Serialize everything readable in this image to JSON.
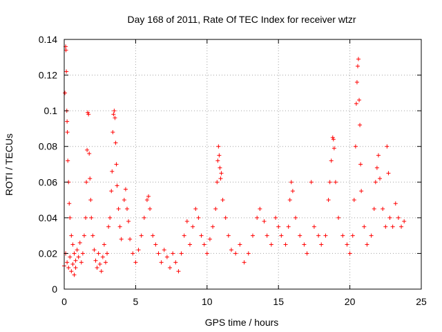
{
  "chart_data": {
    "type": "scatter",
    "title": "Day 168 of 2011, Rate Of TEC Index for receiver wtzr",
    "xlabel": "GPS time / hours",
    "ylabel": "ROTI / TECUs",
    "xlim": [
      0,
      25
    ],
    "ylim": [
      0,
      0.14
    ],
    "xticks": [
      0,
      5,
      10,
      15,
      20,
      25
    ],
    "xtick_labels": [
      "0",
      "5",
      "10",
      "15",
      "20",
      "25"
    ],
    "yticks": [
      0,
      0.02,
      0.04,
      0.06,
      0.08,
      0.1,
      0.12,
      0.14
    ],
    "ytick_labels": [
      "0",
      "0.02",
      "0.04",
      "0.06",
      "0.08",
      "0.1",
      "0.12",
      "0.14"
    ],
    "grid": true,
    "marker": "+",
    "colors": {
      "points": "#ff0000",
      "grid": "#a0a0a0",
      "axes": "#000000"
    },
    "series": [
      {
        "name": "ROTI",
        "points": [
          [
            0.0,
            0.013
          ],
          [
            0.05,
            0.11
          ],
          [
            0.1,
            0.136
          ],
          [
            0.12,
            0.134
          ],
          [
            0.15,
            0.122
          ],
          [
            0.18,
            0.1
          ],
          [
            0.2,
            0.094
          ],
          [
            0.22,
            0.088
          ],
          [
            0.25,
            0.072
          ],
          [
            0.3,
            0.06
          ],
          [
            0.35,
            0.048
          ],
          [
            0.4,
            0.04
          ],
          [
            0.5,
            0.03
          ],
          [
            0.6,
            0.025
          ],
          [
            0.7,
            0.02
          ],
          [
            0.8,
            0.016
          ],
          [
            0.9,
            0.022
          ],
          [
            1.0,
            0.018
          ],
          [
            0.1,
            0.02
          ],
          [
            0.2,
            0.015
          ],
          [
            0.3,
            0.012
          ],
          [
            0.4,
            0.018
          ],
          [
            0.5,
            0.01
          ],
          [
            0.6,
            0.014
          ],
          [
            0.7,
            0.008
          ],
          [
            0.8,
            0.012
          ],
          [
            1.1,
            0.026
          ],
          [
            1.2,
            0.015
          ],
          [
            1.3,
            0.02
          ],
          [
            1.4,
            0.03
          ],
          [
            1.5,
            0.04
          ],
          [
            1.55,
            0.06
          ],
          [
            1.6,
            0.078
          ],
          [
            1.65,
            0.099
          ],
          [
            1.7,
            0.098
          ],
          [
            1.75,
            0.076
          ],
          [
            1.8,
            0.062
          ],
          [
            1.85,
            0.05
          ],
          [
            1.9,
            0.04
          ],
          [
            2.0,
            0.03
          ],
          [
            2.1,
            0.022
          ],
          [
            2.2,
            0.016
          ],
          [
            2.3,
            0.012
          ],
          [
            2.4,
            0.02
          ],
          [
            2.5,
            0.014
          ],
          [
            2.6,
            0.01
          ],
          [
            2.7,
            0.018
          ],
          [
            2.8,
            0.025
          ],
          [
            2.9,
            0.015
          ],
          [
            3.0,
            0.02
          ],
          [
            3.1,
            0.035
          ],
          [
            3.2,
            0.04
          ],
          [
            3.3,
            0.055
          ],
          [
            3.35,
            0.066
          ],
          [
            3.4,
            0.088
          ],
          [
            3.45,
            0.098
          ],
          [
            3.5,
            0.1
          ],
          [
            3.55,
            0.096
          ],
          [
            3.6,
            0.082
          ],
          [
            3.65,
            0.07
          ],
          [
            3.7,
            0.058
          ],
          [
            3.8,
            0.045
          ],
          [
            3.9,
            0.035
          ],
          [
            4.0,
            0.028
          ],
          [
            4.2,
            0.05
          ],
          [
            4.3,
            0.056
          ],
          [
            4.4,
            0.045
          ],
          [
            4.5,
            0.038
          ],
          [
            4.6,
            0.028
          ],
          [
            4.8,
            0.02
          ],
          [
            5.0,
            0.015
          ],
          [
            5.2,
            0.022
          ],
          [
            5.4,
            0.03
          ],
          [
            5.6,
            0.04
          ],
          [
            5.8,
            0.05
          ],
          [
            5.9,
            0.052
          ],
          [
            6.0,
            0.045
          ],
          [
            6.2,
            0.03
          ],
          [
            6.4,
            0.025
          ],
          [
            6.6,
            0.02
          ],
          [
            6.8,
            0.015
          ],
          [
            7.0,
            0.022
          ],
          [
            7.2,
            0.018
          ],
          [
            7.4,
            0.012
          ],
          [
            7.6,
            0.02
          ],
          [
            7.8,
            0.015
          ],
          [
            8.0,
            0.01
          ],
          [
            8.2,
            0.02
          ],
          [
            8.4,
            0.03
          ],
          [
            8.6,
            0.038
          ],
          [
            8.8,
            0.025
          ],
          [
            9.0,
            0.035
          ],
          [
            9.2,
            0.045
          ],
          [
            9.4,
            0.04
          ],
          [
            9.6,
            0.03
          ],
          [
            9.8,
            0.025
          ],
          [
            10.0,
            0.02
          ],
          [
            10.2,
            0.028
          ],
          [
            10.4,
            0.035
          ],
          [
            10.6,
            0.045
          ],
          [
            10.7,
            0.06
          ],
          [
            10.75,
            0.072
          ],
          [
            10.8,
            0.08
          ],
          [
            10.85,
            0.075
          ],
          [
            10.9,
            0.068
          ],
          [
            10.95,
            0.062
          ],
          [
            11.0,
            0.065
          ],
          [
            11.1,
            0.05
          ],
          [
            11.3,
            0.04
          ],
          [
            11.5,
            0.03
          ],
          [
            11.7,
            0.022
          ],
          [
            12.0,
            0.02
          ],
          [
            12.3,
            0.025
          ],
          [
            12.6,
            0.015
          ],
          [
            12.9,
            0.02
          ],
          [
            13.2,
            0.03
          ],
          [
            13.5,
            0.04
          ],
          [
            13.7,
            0.045
          ],
          [
            14.0,
            0.038
          ],
          [
            14.2,
            0.03
          ],
          [
            14.5,
            0.025
          ],
          [
            14.8,
            0.04
          ],
          [
            15.0,
            0.035
          ],
          [
            15.2,
            0.03
          ],
          [
            15.5,
            0.025
          ],
          [
            15.7,
            0.035
          ],
          [
            15.8,
            0.05
          ],
          [
            15.9,
            0.06
          ],
          [
            16.0,
            0.055
          ],
          [
            16.2,
            0.04
          ],
          [
            16.5,
            0.03
          ],
          [
            16.8,
            0.025
          ],
          [
            17.0,
            0.02
          ],
          [
            17.3,
            0.06
          ],
          [
            17.5,
            0.035
          ],
          [
            17.8,
            0.03
          ],
          [
            18.0,
            0.025
          ],
          [
            18.3,
            0.03
          ],
          [
            18.5,
            0.05
          ],
          [
            18.6,
            0.06
          ],
          [
            18.7,
            0.072
          ],
          [
            18.8,
            0.085
          ],
          [
            18.85,
            0.084
          ],
          [
            18.9,
            0.079
          ],
          [
            19.0,
            0.06
          ],
          [
            19.2,
            0.04
          ],
          [
            19.5,
            0.03
          ],
          [
            19.8,
            0.025
          ],
          [
            20.0,
            0.02
          ],
          [
            20.2,
            0.03
          ],
          [
            20.3,
            0.05
          ],
          [
            20.4,
            0.08
          ],
          [
            20.45,
            0.104
          ],
          [
            20.5,
            0.116
          ],
          [
            20.55,
            0.125
          ],
          [
            20.6,
            0.129
          ],
          [
            20.65,
            0.106
          ],
          [
            20.7,
            0.092
          ],
          [
            20.75,
            0.07
          ],
          [
            20.8,
            0.055
          ],
          [
            21.0,
            0.035
          ],
          [
            21.2,
            0.025
          ],
          [
            21.5,
            0.03
          ],
          [
            21.7,
            0.045
          ],
          [
            21.8,
            0.06
          ],
          [
            21.9,
            0.068
          ],
          [
            22.0,
            0.075
          ],
          [
            22.1,
            0.062
          ],
          [
            22.3,
            0.045
          ],
          [
            22.5,
            0.035
          ],
          [
            22.6,
            0.08
          ],
          [
            22.7,
            0.065
          ],
          [
            22.8,
            0.04
          ],
          [
            23.0,
            0.035
          ],
          [
            23.2,
            0.048
          ],
          [
            23.4,
            0.04
          ],
          [
            23.6,
            0.035
          ],
          [
            23.8,
            0.038
          ]
        ]
      }
    ]
  }
}
